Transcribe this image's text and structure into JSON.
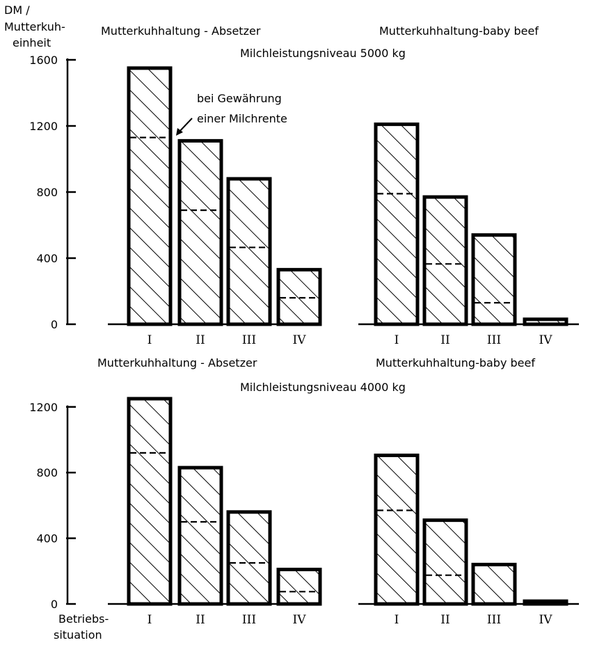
{
  "y_unit_label": [
    "DM /",
    "Mutterkuh-",
    "einheit"
  ],
  "x_axis_label": [
    "Betriebs-",
    "situation"
  ],
  "annotation": [
    "bei Gewährung",
    "einer Milchrente"
  ],
  "upper_caption": "Milchleistungsniveau 5000 kg",
  "lower_caption": "Milchleistungsniveau 4000 kg",
  "chart_data": [
    {
      "type": "bar",
      "title": "Mutterkuhhaltung - Absetzer",
      "group": "Milchleistungsniveau 5000 kg",
      "categories": [
        "I",
        "II",
        "III",
        "IV"
      ],
      "ylim": [
        0,
        1600
      ],
      "yticks": [
        0,
        400,
        800,
        1200,
        1600
      ],
      "series": [
        {
          "values": [
            1550,
            1110,
            880,
            330
          ]
        },
        {
          "name": "bei Gewährung einer Milchrente",
          "values": [
            1130,
            690,
            465,
            160
          ]
        }
      ]
    },
    {
      "type": "bar",
      "title": "Mutterkuhhaltung-baby beef",
      "group": "Milchleistungsniveau 5000 kg",
      "categories": [
        "I",
        "II",
        "III",
        "IV"
      ],
      "ylim": [
        0,
        1600
      ],
      "yticks": [
        0,
        400,
        800,
        1200,
        1600
      ],
      "series": [
        {
          "values": [
            1210,
            770,
            540,
            30
          ]
        },
        {
          "name": "bei Gewährung einer Milchrente",
          "values": [
            790,
            365,
            130,
            0
          ]
        }
      ]
    },
    {
      "type": "bar",
      "title": "Mutterkuhhaltung - Absetzer",
      "group": "Milchleistungsniveau 4000 kg",
      "categories": [
        "I",
        "II",
        "III",
        "IV"
      ],
      "ylim": [
        0,
        1200
      ],
      "yticks": [
        0,
        400,
        800,
        1200
      ],
      "series": [
        {
          "values": [
            1250,
            830,
            560,
            210
          ]
        },
        {
          "name": "bei Gewährung einer Milchrente",
          "values": [
            920,
            500,
            250,
            75
          ]
        }
      ]
    },
    {
      "type": "bar",
      "title": "Mutterkuhhaltung-baby beef",
      "group": "Milchleistungsniveau 4000 kg",
      "categories": [
        "I",
        "II",
        "III",
        "IV"
      ],
      "ylim": [
        0,
        1200
      ],
      "yticks": [
        0,
        400,
        800,
        1200
      ],
      "series": [
        {
          "values": [
            905,
            510,
            240,
            5
          ]
        },
        {
          "name": "bei Gewährung einer Milchrente",
          "values": [
            570,
            175,
            0,
            0
          ]
        }
      ]
    }
  ]
}
